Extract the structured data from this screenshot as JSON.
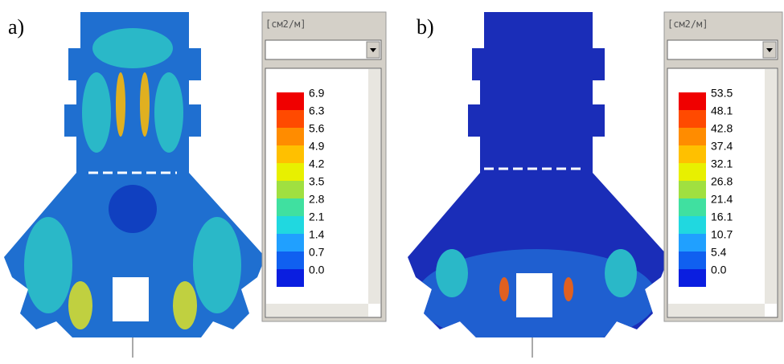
{
  "panels": [
    {
      "label": "a)",
      "unit": "[см2/м]",
      "legend": [
        "6.9",
        "6.3",
        "5.6",
        "4.9",
        "4.2",
        "3.5",
        "2.8",
        "2.1",
        "1.4",
        "0.7",
        "0.0"
      ]
    },
    {
      "label": "b)",
      "unit": "[см2/м]",
      "legend": [
        "53.5",
        "48.1",
        "42.8",
        "37.4",
        "32.1",
        "26.8",
        "21.4",
        "16.1",
        "10.7",
        "5.4",
        "0.0"
      ]
    }
  ],
  "scale_colors": [
    "#f00000",
    "#ff4a00",
    "#ff8c00",
    "#ffc000",
    "#e8f000",
    "#a0e040",
    "#40e0a0",
    "#20d8e0",
    "#20a0ff",
    "#1060f0",
    "#0a1ee0"
  ]
}
